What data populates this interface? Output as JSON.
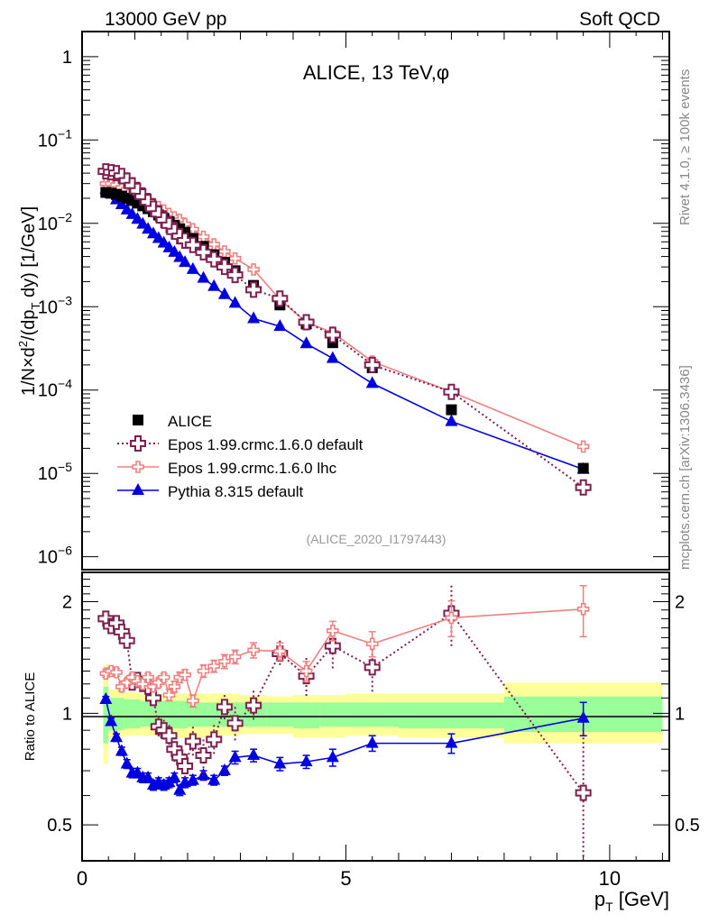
{
  "header": {
    "left": "13000 GeV pp",
    "right": "Soft QCD"
  },
  "side_labels": {
    "rivet": "Rivet 4.1.0, ≥ 100k events",
    "mcplots": "mcplots.cern.ch [arXiv:1306.3436]"
  },
  "chart_data": [
    {
      "type": "scatter",
      "panel": "main",
      "title": "ALICE, 13 TeV,φ",
      "xlabel": "p_T [GeV]",
      "ylabel": "1/N × d²/(dp_T dy) [1/GeV]",
      "yscale": "log",
      "xlim": [
        0,
        11.13
      ],
      "ylim": [
        7e-07,
        2.0
      ],
      "ytick_labels": [
        "1",
        "10^-1",
        "10^-2",
        "10^-3",
        "10^-4",
        "10^-5",
        "10^-6"
      ],
      "yticks": [
        1,
        0.1,
        0.01,
        0.001,
        0.0001,
        1e-05,
        1e-06
      ],
      "analysis_tag": "(ALICE_2020_I1797443)",
      "legend_position": "bottom-left",
      "x": [
        0.45,
        0.55,
        0.65,
        0.75,
        0.85,
        0.95,
        1.05,
        1.15,
        1.25,
        1.35,
        1.45,
        1.55,
        1.65,
        1.75,
        1.85,
        1.95,
        2.1,
        2.3,
        2.5,
        2.7,
        2.9,
        3.25,
        3.75,
        4.25,
        4.75,
        5.5,
        7.0,
        9.5
      ],
      "series": [
        {
          "name": "ALICE",
          "style": "data",
          "color": "#000000",
          "values": [
            0.0235,
            0.023,
            0.0222,
            0.0212,
            0.02,
            0.0188,
            0.0175,
            0.0162,
            0.015,
            0.0138,
            0.0126,
            0.0115,
            0.0105,
            0.0095,
            0.0086,
            0.0078,
            0.0066,
            0.0053,
            0.0042,
            0.0034,
            0.0027,
            0.0018,
            0.00105,
            0.00062,
            0.00037,
            0.000185,
            5.8e-05,
            1.15e-05
          ]
        },
        {
          "name": "Epos 1.99.crmc.1.6.0 default",
          "style": "dotted",
          "color": "#7f1f4f",
          "values": [
            0.042,
            0.041,
            0.04,
            0.037,
            0.0325,
            0.0285,
            0.0245,
            0.021,
            0.018,
            0.015,
            0.013,
            0.011,
            0.0095,
            0.008,
            0.007,
            0.0062,
            0.0055,
            0.0045,
            0.0037,
            0.003,
            0.0024,
            0.0016,
            0.00125,
            0.00065,
            0.00046,
            0.0002,
            9.5e-05,
            6.8e-06
          ]
        },
        {
          "name": "Epos 1.99.crmc.1.6.0 lhc",
          "style": "solid",
          "color": "#f08080",
          "values": [
            0.03,
            0.03,
            0.029,
            0.027,
            0.0255,
            0.024,
            0.0222,
            0.0205,
            0.019,
            0.017,
            0.0157,
            0.0143,
            0.013,
            0.0118,
            0.011,
            0.0098,
            0.0085,
            0.0069,
            0.0056,
            0.0046,
            0.0038,
            0.0028,
            0.00122,
            0.00065,
            0.00049,
            0.00022,
            9.5e-05,
            2.1e-05
          ]
        },
        {
          "name": "Pythia 8.315 default",
          "style": "solid",
          "color": "#0000e0",
          "values": [
            0.0255,
            0.0225,
            0.0192,
            0.0168,
            0.0145,
            0.0128,
            0.0112,
            0.0098,
            0.0085,
            0.0075,
            0.0066,
            0.0058,
            0.0051,
            0.0045,
            0.0039,
            0.0034,
            0.0028,
            0.0022,
            0.00175,
            0.0014,
            0.0011,
            0.00072,
            0.00058,
            0.00036,
            0.00024,
            0.00012,
            4.2e-05,
            1.12e-05
          ]
        }
      ]
    },
    {
      "type": "scatter",
      "panel": "ratio",
      "ylabel": "Ratio to ALICE",
      "xlabel": "p_T [GeV]",
      "yscale": "log",
      "xlim": [
        0,
        11.13
      ],
      "ylim": [
        0.4,
        2.4
      ],
      "ytick_labels": [
        "0.5",
        "1",
        "2"
      ],
      "yticks": [
        0.5,
        1,
        2
      ],
      "xtick_labels": [
        "0",
        "5",
        "10"
      ],
      "xticks": [
        0,
        5,
        10
      ],
      "reference_line": 1,
      "band_bins": [
        {
          "xlo": 0.4,
          "xhi": 0.5,
          "inner": [
            0.83,
            1.18
          ],
          "outer": [
            0.73,
            1.35
          ]
        },
        {
          "xlo": 0.5,
          "xhi": 0.8,
          "inner": [
            0.9,
            1.1
          ],
          "outer": [
            0.86,
            1.16
          ]
        },
        {
          "xlo": 0.8,
          "xhi": 1.1,
          "inner": [
            0.91,
            1.09
          ],
          "outer": [
            0.87,
            1.14
          ]
        },
        {
          "xlo": 1.1,
          "xhi": 1.6,
          "inner": [
            0.92,
            1.08
          ],
          "outer": [
            0.87,
            1.13
          ]
        },
        {
          "xlo": 1.6,
          "xhi": 2.0,
          "inner": [
            0.91,
            1.08
          ],
          "outer": [
            0.86,
            1.13
          ]
        },
        {
          "xlo": 2.0,
          "xhi": 2.6,
          "inner": [
            0.92,
            1.07
          ],
          "outer": [
            0.86,
            1.13
          ]
        },
        {
          "xlo": 2.6,
          "xhi": 3.0,
          "inner": [
            0.92,
            1.07
          ],
          "outer": [
            0.87,
            1.13
          ]
        },
        {
          "xlo": 3.0,
          "xhi": 3.5,
          "inner": [
            0.92,
            1.07
          ],
          "outer": [
            0.88,
            1.12
          ]
        },
        {
          "xlo": 3.5,
          "xhi": 4.0,
          "inner": [
            0.92,
            1.07
          ],
          "outer": [
            0.88,
            1.11
          ]
        },
        {
          "xlo": 4.0,
          "xhi": 4.5,
          "inner": [
            0.91,
            1.07
          ],
          "outer": [
            0.86,
            1.12
          ]
        },
        {
          "xlo": 4.5,
          "xhi": 5.0,
          "inner": [
            0.92,
            1.07
          ],
          "outer": [
            0.86,
            1.12
          ]
        },
        {
          "xlo": 5.0,
          "xhi": 6.0,
          "inner": [
            0.92,
            1.07
          ],
          "outer": [
            0.87,
            1.13
          ]
        },
        {
          "xlo": 6.0,
          "xhi": 8.0,
          "inner": [
            0.91,
            1.07
          ],
          "outer": [
            0.86,
            1.13
          ]
        },
        {
          "xlo": 8.0,
          "xhi": 11.0,
          "inner": [
            0.89,
            1.11
          ],
          "outer": [
            0.83,
            1.21
          ]
        }
      ],
      "x": [
        0.45,
        0.55,
        0.65,
        0.75,
        0.85,
        0.95,
        1.05,
        1.15,
        1.25,
        1.35,
        1.45,
        1.55,
        1.65,
        1.75,
        1.85,
        1.95,
        2.1,
        2.3,
        2.5,
        2.7,
        2.9,
        3.25,
        3.75,
        4.25,
        4.75,
        5.5,
        7.0,
        9.5
      ],
      "series": [
        {
          "name": "Epos 1.99.crmc.1.6.0 default",
          "style": "dotted",
          "color": "#7f1f4f",
          "values": [
            1.8,
            1.72,
            1.75,
            1.66,
            1.57,
            1.21,
            1.23,
            1.2,
            1.18,
            1.1,
            0.92,
            0.9,
            0.87,
            0.8,
            0.76,
            0.72,
            0.84,
            0.77,
            0.85,
            1.04,
            0.94,
            1.05,
            1.45,
            1.26,
            1.52,
            1.33,
            1.86,
            0.61
          ],
          "err": [
            0.05,
            0.05,
            0.05,
            0.05,
            0.05,
            0.06,
            0.06,
            0.06,
            0.06,
            0.06,
            0.06,
            0.06,
            0.06,
            0.06,
            0.06,
            0.06,
            0.08,
            0.08,
            0.08,
            0.08,
            0.1,
            0.1,
            0.12,
            0.15,
            0.2,
            0.2,
            0.35,
            0.3
          ]
        },
        {
          "name": "Epos 1.99.crmc.1.6.0 lhc",
          "style": "solid",
          "color": "#f08080",
          "values": [
            1.28,
            1.3,
            1.29,
            1.18,
            1.21,
            1.25,
            1.22,
            1.2,
            1.25,
            1.18,
            1.21,
            1.25,
            1.12,
            1.18,
            1.25,
            1.27,
            1.08,
            1.3,
            1.34,
            1.38,
            1.42,
            1.48,
            1.47,
            1.3,
            1.67,
            1.54,
            1.81,
            1.91
          ],
          "err": [
            0.03,
            0.03,
            0.03,
            0.03,
            0.03,
            0.03,
            0.03,
            0.03,
            0.03,
            0.03,
            0.03,
            0.03,
            0.04,
            0.04,
            0.04,
            0.04,
            0.04,
            0.05,
            0.05,
            0.06,
            0.06,
            0.07,
            0.08,
            0.08,
            0.1,
            0.12,
            0.2,
            0.3
          ]
        },
        {
          "name": "Pythia 8.315 default",
          "style": "solid",
          "color": "#0000e0",
          "values": [
            1.09,
            0.95,
            0.86,
            0.79,
            0.73,
            0.69,
            0.69,
            0.67,
            0.67,
            0.64,
            0.65,
            0.64,
            0.65,
            0.67,
            0.62,
            0.65,
            0.66,
            0.68,
            0.66,
            0.7,
            0.76,
            0.77,
            0.73,
            0.74,
            0.76,
            0.83,
            0.83,
            0.97
          ],
          "err": [
            0.02,
            0.02,
            0.02,
            0.02,
            0.02,
            0.02,
            0.02,
            0.02,
            0.02,
            0.02,
            0.02,
            0.02,
            0.02,
            0.02,
            0.02,
            0.02,
            0.02,
            0.02,
            0.02,
            0.02,
            0.03,
            0.03,
            0.03,
            0.03,
            0.04,
            0.04,
            0.05,
            0.1
          ]
        }
      ]
    }
  ]
}
